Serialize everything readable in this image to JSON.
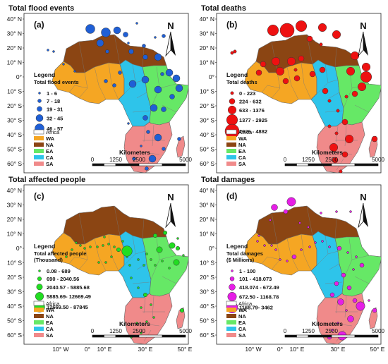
{
  "panels": [
    {
      "title": "Total flood events",
      "letter": "(a)",
      "legend_title": "Total flood events",
      "symbol_color": "#1f5fd6",
      "classes": [
        "1 - 6",
        "7 - 18",
        "19 - 31",
        "32 - 45",
        "46 - 57"
      ]
    },
    {
      "title": "Total deaths",
      "letter": "(b)",
      "legend_title": "Total deaths",
      "symbol_color": "#ee1111",
      "classes": [
        "0 - 223",
        "224 - 632",
        "633 - 1376",
        "1377 - 2925",
        "2926 - 4882"
      ]
    },
    {
      "title": "Total affected people",
      "letter": "(c)",
      "legend_title": "Total affected people\n(Thousand)",
      "symbol_color": "#22dd22",
      "classes": [
        "0.08 - 689",
        "690 - 2040.56",
        "2040.57 - 5885.68",
        "5885.69- 12669.49",
        "12669.50 - 87845"
      ]
    },
    {
      "title": "Total damages",
      "letter": "(d)",
      "legend_title": "Total damages\n($ Millions)",
      "symbol_color": "#e61ee6",
      "classes": [
        "1 - 100",
        "101 - 418.073",
        "418.074 - 672.49",
        "672.50 - 1168.78",
        "1168.79- 3462"
      ]
    }
  ],
  "legend_heading": "Legend",
  "north_label": "N",
  "region_legend": [
    {
      "label": "Africa",
      "color": "#ffffff"
    },
    {
      "label": "WA",
      "color": "#f5a623"
    },
    {
      "label": "NA",
      "color": "#8b4513"
    },
    {
      "label": "EA",
      "color": "#66e866"
    },
    {
      "label": "CA",
      "color": "#2ec4ea"
    },
    {
      "label": "SA",
      "color": "#f08a8a"
    }
  ],
  "scale": {
    "title": "Kilometers",
    "ticks": [
      "0",
      "1250",
      "2500",
      "5000"
    ]
  },
  "lat_labels": [
    "40° N",
    "30° N",
    "20° N",
    "10° N",
    "0°",
    "10° S",
    "20° S",
    "30° S",
    "40° S",
    "50° S",
    "60° S"
  ],
  "lon_labels": [
    "10° W",
    "0°",
    "10° E",
    "30° E",
    "50° E"
  ],
  "region_colors": {
    "WA": "#f5a623",
    "NA": "#8b4513",
    "EA": "#66e866",
    "CA": "#2ec4ea",
    "SA": "#f08a8a"
  }
}
